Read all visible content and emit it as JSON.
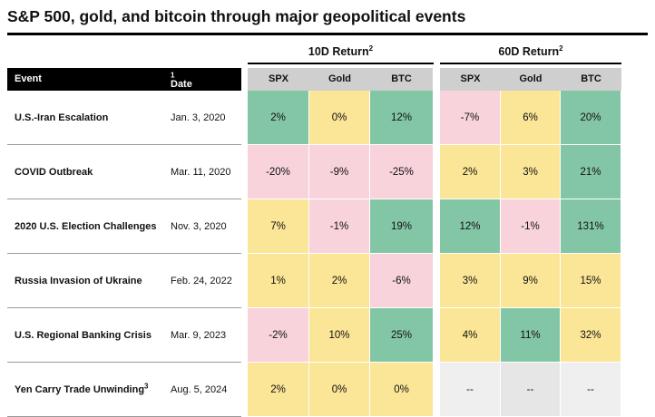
{
  "title": "S&P 500, gold, and bitcoin through major geopolitical events",
  "header": {
    "event": "Event",
    "date": "Date",
    "date_sup": "1",
    "group_10d": "10D Return",
    "group_60d": "60D Return",
    "group_sup": "2",
    "columns": [
      "SPX",
      "Gold",
      "BTC"
    ]
  },
  "colors": {
    "positive": "#83c6a6",
    "neutral": "#fbe597",
    "negative": "#f8d3dc",
    "no_data": "#efefef",
    "header_dark": "#000000",
    "header_gray": "#cfcfcf"
  },
  "chart_data": {
    "type": "table",
    "title": "S&P 500, gold, and bitcoin through major geopolitical events",
    "columns": [
      "Event",
      "Date",
      "10D SPX",
      "10D Gold",
      "10D BTC",
      "60D SPX",
      "60D Gold",
      "60D BTC"
    ],
    "rows": [
      {
        "event": "U.S.-Iran Escalation",
        "event_sup": "",
        "date": "Jan. 3, 2020",
        "d10": [
          "2%",
          "0%",
          "12%"
        ],
        "d60": [
          "-7%",
          "6%",
          "20%"
        ],
        "c10": [
          "positive",
          "neutral",
          "positive"
        ],
        "c60": [
          "negative",
          "neutral",
          "positive"
        ]
      },
      {
        "event": "COVID Outbreak",
        "event_sup": "",
        "date": "Mar. 11, 2020",
        "d10": [
          "-20%",
          "-9%",
          "-25%"
        ],
        "d60": [
          "2%",
          "3%",
          "21%"
        ],
        "c10": [
          "negative",
          "negative",
          "negative"
        ],
        "c60": [
          "neutral",
          "neutral",
          "positive"
        ]
      },
      {
        "event": "2020 U.S. Election Challenges",
        "event_sup": "",
        "date": "Nov. 3, 2020",
        "d10": [
          "7%",
          "-1%",
          "19%"
        ],
        "d60": [
          "12%",
          "-1%",
          "131%"
        ],
        "c10": [
          "neutral",
          "negative",
          "positive"
        ],
        "c60": [
          "positive",
          "negative",
          "positive"
        ]
      },
      {
        "event": "Russia Invasion of Ukraine",
        "event_sup": "",
        "date": "Feb. 24, 2022",
        "d10": [
          "1%",
          "2%",
          "-6%"
        ],
        "d60": [
          "3%",
          "9%",
          "15%"
        ],
        "c10": [
          "neutral",
          "neutral",
          "negative"
        ],
        "c60": [
          "neutral",
          "neutral",
          "neutral"
        ]
      },
      {
        "event": "U.S. Regional Banking Crisis",
        "event_sup": "",
        "date": "Mar. 9, 2023",
        "d10": [
          "-2%",
          "10%",
          "25%"
        ],
        "d60": [
          "4%",
          "11%",
          "32%"
        ],
        "c10": [
          "negative",
          "neutral",
          "positive"
        ],
        "c60": [
          "neutral",
          "positive",
          "neutral"
        ]
      },
      {
        "event": "Yen Carry Trade Unwinding",
        "event_sup": "3",
        "date": "Aug. 5, 2024",
        "d10": [
          "2%",
          "0%",
          "0%"
        ],
        "d60": [
          "--",
          "--",
          "--"
        ],
        "c10": [
          "neutral",
          "neutral",
          "neutral"
        ],
        "c60": [
          "no_data",
          "no_data",
          "no_data"
        ]
      }
    ]
  }
}
